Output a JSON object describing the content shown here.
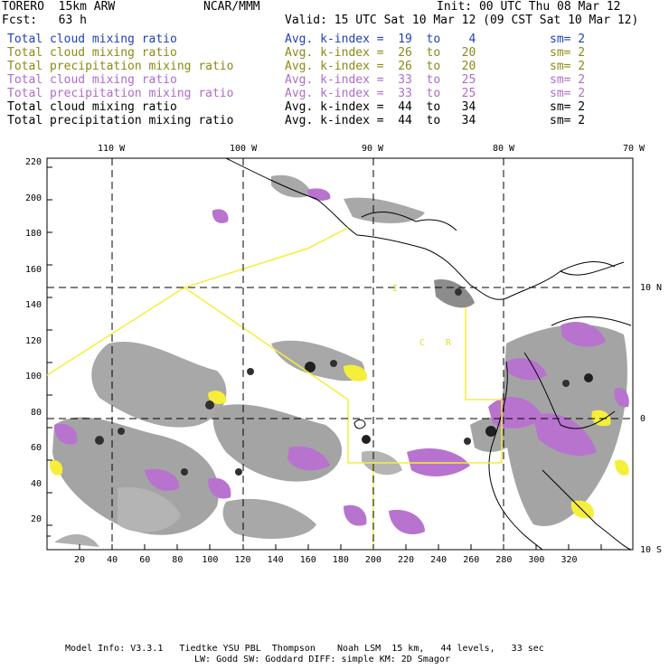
{
  "header": {
    "model": "TORERO  15km ARW",
    "center": "NCAR/MMM",
    "init": "Init: 00 UTC Thu 08 Mar 12",
    "fcst": "Fcst:   63 h",
    "valid": "Valid: 15 UTC Sat 10 Mar 12 (09 CST Sat 10 Mar 12)"
  },
  "colors": {
    "blue": "#1f3fbf",
    "olive": "#8a8a14",
    "purple": "#b06cc8",
    "black": "#000000",
    "yellow": "#f5ee3a",
    "magenta": "#b873cf",
    "gray": "#a4a4a4"
  },
  "legend": [
    {
      "label": "Total cloud mixing ratio",
      "index": "Avg. k-index =  19  to    4",
      "sm": "sm= 2",
      "color": "#1f3fbf"
    },
    {
      "label": "Total cloud mixing ratio",
      "index": "Avg. k-index =  26  to   20",
      "sm": "sm= 2",
      "color": "#8a8a14"
    },
    {
      "label": "Total precipitation mixing ratio",
      "index": "Avg. k-index =  26  to   20",
      "sm": "sm= 2",
      "color": "#8a8a14"
    },
    {
      "label": "Total cloud mixing ratio",
      "index": "Avg. k-index =  33  to   25",
      "sm": "sm= 2",
      "color": "#b06cc8"
    },
    {
      "label": "Total precipitation mixing ratio",
      "index": "Avg. k-index =  33  to   25",
      "sm": "sm= 2",
      "color": "#b06cc8"
    },
    {
      "label": "Total cloud mixing ratio",
      "index": "Avg. k-index =  44  to   34",
      "sm": "sm= 2",
      "color": "#000000"
    },
    {
      "label": "Total precipitation mixing ratio",
      "index": "Avg. k-index =  44  to   34",
      "sm": "sm= 2",
      "color": "#000000"
    }
  ],
  "top_lon_labels": [
    "110 W",
    "100 W",
    "90 W",
    "80 W",
    "70 W"
  ],
  "right_lat_labels": [
    "10 N",
    "0",
    "10 S"
  ],
  "x_grid_labels": [
    "20",
    "40",
    "60",
    "80",
    "100",
    "120",
    "140",
    "160",
    "180",
    "200",
    "220",
    "240",
    "260",
    "280",
    "300",
    "320"
  ],
  "y_grid_labels": [
    "220",
    "200",
    "180",
    "160",
    "140",
    "120",
    "100",
    "80",
    "60",
    "40",
    "20"
  ],
  "region_labels": [
    "I",
    "C",
    "R"
  ],
  "footer": {
    "line1": "Model Info: V3.3.1   Tiedtke YSU PBL  Thompson    Noah LSM  15 km,   44 levels,   33 sec",
    "line2": "LW: Godd SW: Goddard DIFF: simple KM: 2D Smagor"
  }
}
